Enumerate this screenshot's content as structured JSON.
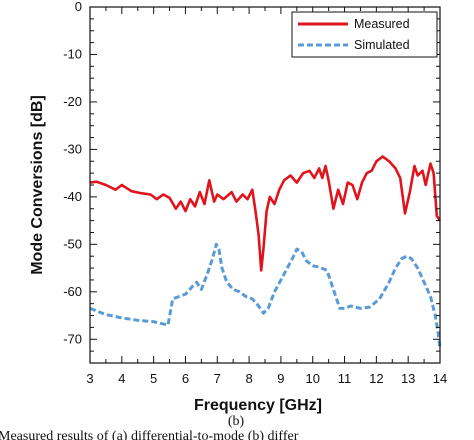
{
  "chart_data": {
    "type": "line",
    "title": "",
    "xlabel": "Frequency [GHz]",
    "ylabel": "Mode Conversions [dB]",
    "xlim": [
      3,
      14
    ],
    "ylim": [
      -75,
      0
    ],
    "xticks": [
      3,
      4,
      5,
      6,
      7,
      8,
      9,
      10,
      11,
      12,
      13,
      14
    ],
    "yticks": [
      0,
      -10,
      -20,
      -30,
      -40,
      -50,
      -60,
      -70
    ],
    "grid": false,
    "legend_position": "top-right",
    "series": [
      {
        "name": "Measured",
        "color": "#e0141c",
        "style": "solid",
        "points": [
          [
            3.0,
            -37
          ],
          [
            3.2,
            -36.8
          ],
          [
            3.5,
            -37.5
          ],
          [
            3.8,
            -38.5
          ],
          [
            4.0,
            -37.5
          ],
          [
            4.3,
            -38.8
          ],
          [
            4.6,
            -39.2
          ],
          [
            4.9,
            -39.5
          ],
          [
            5.1,
            -40.5
          ],
          [
            5.3,
            -39.5
          ],
          [
            5.5,
            -40.2
          ],
          [
            5.7,
            -42.5
          ],
          [
            5.85,
            -41
          ],
          [
            6.0,
            -43
          ],
          [
            6.15,
            -40.5
          ],
          [
            6.3,
            -42
          ],
          [
            6.45,
            -39
          ],
          [
            6.6,
            -41.5
          ],
          [
            6.75,
            -36.5
          ],
          [
            6.9,
            -41
          ],
          [
            7.0,
            -39.5
          ],
          [
            7.2,
            -40.5
          ],
          [
            7.45,
            -39
          ],
          [
            7.6,
            -41
          ],
          [
            7.8,
            -39.5
          ],
          [
            7.95,
            -40.5
          ],
          [
            8.1,
            -38.5
          ],
          [
            8.2,
            -43
          ],
          [
            8.3,
            -48
          ],
          [
            8.38,
            -55.5
          ],
          [
            8.45,
            -51
          ],
          [
            8.55,
            -43
          ],
          [
            8.65,
            -40
          ],
          [
            8.8,
            -41.5
          ],
          [
            8.95,
            -38.5
          ],
          [
            9.1,
            -36.5
          ],
          [
            9.3,
            -35.5
          ],
          [
            9.5,
            -37
          ],
          [
            9.7,
            -35
          ],
          [
            9.9,
            -34.5
          ],
          [
            10.05,
            -36
          ],
          [
            10.2,
            -34
          ],
          [
            10.3,
            -36
          ],
          [
            10.4,
            -33.5
          ],
          [
            10.5,
            -36.5
          ],
          [
            10.65,
            -42.5
          ],
          [
            10.8,
            -38.5
          ],
          [
            10.95,
            -41.5
          ],
          [
            11.1,
            -37
          ],
          [
            11.25,
            -37.5
          ],
          [
            11.4,
            -40.5
          ],
          [
            11.55,
            -37
          ],
          [
            11.7,
            -35
          ],
          [
            11.85,
            -34.5
          ],
          [
            12.0,
            -32.5
          ],
          [
            12.2,
            -31.5
          ],
          [
            12.4,
            -32.5
          ],
          [
            12.6,
            -34
          ],
          [
            12.75,
            -36
          ],
          [
            12.9,
            -43.5
          ],
          [
            13.05,
            -39
          ],
          [
            13.2,
            -33.5
          ],
          [
            13.3,
            -35.5
          ],
          [
            13.45,
            -34.5
          ],
          [
            13.55,
            -37.5
          ],
          [
            13.7,
            -33
          ],
          [
            13.8,
            -35
          ],
          [
            13.9,
            -44
          ],
          [
            14.0,
            -45
          ]
        ]
      },
      {
        "name": "Simulated",
        "color": "#5b9bd5",
        "style": "dashed",
        "points": [
          [
            3.0,
            -63.5
          ],
          [
            3.5,
            -64.8
          ],
          [
            4.0,
            -65.5
          ],
          [
            4.5,
            -66
          ],
          [
            5.0,
            -66.3
          ],
          [
            5.45,
            -67
          ],
          [
            5.6,
            -61.5
          ],
          [
            5.8,
            -61
          ],
          [
            6.0,
            -60.5
          ],
          [
            6.2,
            -59
          ],
          [
            6.35,
            -58
          ],
          [
            6.5,
            -59.5
          ],
          [
            6.7,
            -56
          ],
          [
            6.85,
            -53
          ],
          [
            6.97,
            -50
          ],
          [
            7.05,
            -51
          ],
          [
            7.15,
            -55
          ],
          [
            7.3,
            -58
          ],
          [
            7.5,
            -59.5
          ],
          [
            7.7,
            -60
          ],
          [
            7.9,
            -61
          ],
          [
            8.1,
            -61.5
          ],
          [
            8.3,
            -63
          ],
          [
            8.45,
            -64.5
          ],
          [
            8.6,
            -63.5
          ],
          [
            8.8,
            -60
          ],
          [
            9.0,
            -57.5
          ],
          [
            9.2,
            -55
          ],
          [
            9.4,
            -52.5
          ],
          [
            9.5,
            -51
          ],
          [
            9.65,
            -51.5
          ],
          [
            9.8,
            -53.5
          ],
          [
            10.0,
            -54.5
          ],
          [
            10.2,
            -54.8
          ],
          [
            10.45,
            -55.5
          ],
          [
            10.55,
            -57.5
          ],
          [
            10.7,
            -60.5
          ],
          [
            10.85,
            -63.5
          ],
          [
            11.0,
            -63.5
          ],
          [
            11.2,
            -63
          ],
          [
            11.5,
            -63.5
          ],
          [
            11.8,
            -63.2
          ],
          [
            12.1,
            -61.5
          ],
          [
            12.4,
            -58
          ],
          [
            12.6,
            -55
          ],
          [
            12.8,
            -53
          ],
          [
            12.95,
            -52.5
          ],
          [
            13.1,
            -53
          ],
          [
            13.3,
            -55
          ],
          [
            13.5,
            -58
          ],
          [
            13.7,
            -61
          ],
          [
            13.85,
            -65
          ],
          [
            13.95,
            -69
          ],
          [
            14.0,
            -72
          ]
        ]
      }
    ]
  },
  "figure": {
    "sublabel": "(b)",
    "caption_fragment": "Measured results of (a) differential-to-mode (b) differ"
  }
}
